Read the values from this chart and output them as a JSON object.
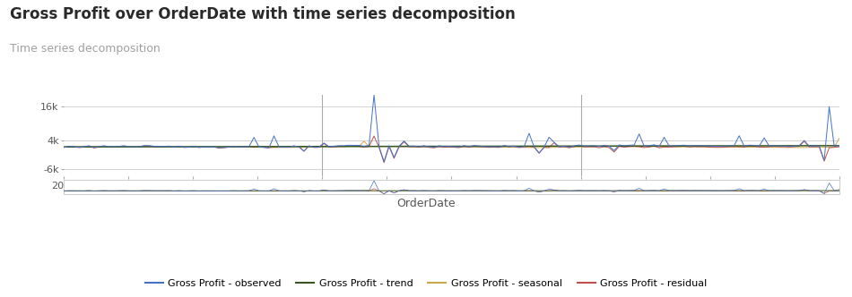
{
  "title": "Gross Profit over OrderDate with time series decomposition",
  "subtitle": "Time series decomposition",
  "subtitle_color": "#A0A0A0",
  "xlabel": "OrderDate",
  "title_fontsize": 12,
  "subtitle_fontsize": 9,
  "xlabel_fontsize": 9,
  "yticks_main": [
    -6000,
    4000,
    16000
  ],
  "ytick_labels_main": [
    "-6k",
    "4k",
    "16k"
  ],
  "ylim_main": [
    -8500,
    20000
  ],
  "colors": {
    "observed": "#4472C4",
    "trend": "#375623",
    "seasonal": "#C8A84B",
    "residual": "#C0504D"
  },
  "line_width": 0.7,
  "background_color": "#FFFFFF",
  "grid_color": "#CCCCCC",
  "legend_labels": [
    "Gross Profit - observed",
    "Gross Profit - trend",
    "Gross Profit - seasonal",
    "Gross Profit - residual"
  ]
}
